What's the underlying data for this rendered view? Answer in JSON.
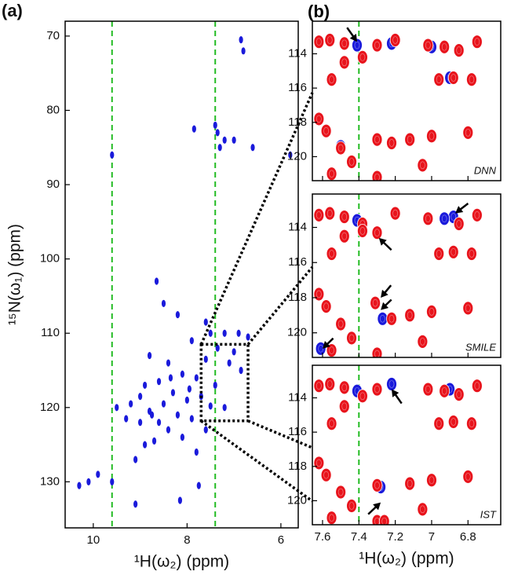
{
  "chart_data": [
    {
      "type": "scatter",
      "panel_label": "(a)",
      "xlabel": "¹H(ω₂) (ppm)",
      "ylabel": "¹⁵N(ω₁) (ppm)",
      "xlim": [
        10.6,
        5.63
      ],
      "ylim": [
        68,
        136.2
      ],
      "xticks": [
        10,
        8,
        6
      ],
      "yticks": [
        70,
        80,
        90,
        100,
        110,
        120,
        130
      ],
      "guides": [
        9.6,
        7.4
      ],
      "guide_color": "#22bb22",
      "zoom_box": {
        "x": [
          7.7,
          6.7
        ],
        "y": [
          111.5,
          121.8
        ]
      },
      "series": [
        {
          "color": "#1a1adb",
          "x": [
            6.85,
            6.8,
            7.4,
            7.85,
            7.35,
            7.2,
            7.0,
            6.6,
            9.6,
            5.8,
            7.3,
            8.65,
            8.5,
            8.2,
            7.6,
            7.5,
            7.2,
            6.9,
            6.7,
            7.9,
            7.35,
            7.0,
            8.8,
            7.6,
            8.4,
            7.1,
            6.85,
            8.1,
            7.8,
            8.6,
            8.9,
            7.4,
            8.3,
            9.0,
            7.7,
            8.0,
            8.5,
            9.2,
            7.5,
            7.2,
            8.8,
            9.5,
            8.2,
            7.9,
            8.6,
            9.0,
            8.4,
            7.6,
            8.1,
            8.7,
            8.9,
            7.8,
            9.1,
            10.3,
            10.1,
            9.9,
            9.6,
            9.1,
            8.15,
            7.75,
            8.35,
            7.95,
            8.75,
            9.3
          ],
          "y": [
            70.5,
            72,
            82,
            82.5,
            83,
            84,
            84,
            85,
            86,
            86,
            85,
            103,
            106,
            107.5,
            108.5,
            110,
            110,
            110,
            110.5,
            111,
            112,
            112.5,
            113,
            113.5,
            114,
            114,
            115,
            115.5,
            116,
            116.5,
            117,
            117,
            118,
            118.5,
            118.5,
            119,
            119.5,
            119.5,
            119.8,
            120,
            120.5,
            120,
            121,
            121.5,
            122,
            122,
            123,
            123,
            124,
            124.5,
            125,
            126,
            127,
            130.5,
            130,
            129,
            130,
            133,
            132.5,
            130.5,
            116,
            117.5,
            121,
            121.5
          ]
        }
      ]
    },
    {
      "type": "scatter",
      "title": "DNN",
      "xlim": [
        7.656,
        6.62
      ],
      "ylim": [
        112.1,
        121.4
      ],
      "xticks": [
        7.6,
        7.4,
        7.2,
        7.0,
        6.8
      ],
      "show_xtick_labels": false,
      "yticks": [
        114,
        116,
        118,
        120
      ],
      "guides": [
        7.4
      ],
      "guide_color": "#22bb22",
      "arrows": [
        {
          "from": [
            7.45,
            112.7
          ],
          "to": [
            7.41,
            113.3
          ]
        }
      ],
      "series": [
        {
          "color": "#1a1adb",
          "x": [
            7.41,
            7.22,
            6.9,
            7.0,
            7.5
          ],
          "y": [
            113.5,
            113.4,
            115.4,
            113.6,
            119.4
          ]
        },
        {
          "color": "#e8141c",
          "x": [
            7.62,
            7.56,
            7.48,
            7.3,
            7.2,
            7.02,
            6.93,
            6.85,
            6.75,
            7.55,
            7.62,
            7.58,
            7.5,
            7.44,
            7.55,
            7.22,
            7.3,
            7.12,
            7.0,
            6.96,
            6.88,
            6.78,
            7.05,
            6.8,
            7.3,
            7.38,
            7.48
          ],
          "y": [
            113.3,
            113.2,
            113.4,
            113.5,
            113.2,
            113.5,
            113.6,
            113.8,
            113.3,
            115.5,
            117.8,
            118.5,
            119.5,
            120.3,
            121,
            119.2,
            119,
            119,
            118.8,
            115.5,
            115.4,
            115.5,
            120.5,
            118.6,
            121.2,
            114.2,
            114.5
          ]
        }
      ]
    },
    {
      "type": "scatter",
      "title": "SMILE",
      "xlim": [
        7.656,
        6.62
      ],
      "ylim": [
        112.1,
        121.4
      ],
      "xticks": [
        7.6,
        7.4,
        7.2,
        7.0,
        6.8
      ],
      "show_xtick_labels": false,
      "yticks": [
        114,
        116,
        118,
        120
      ],
      "guides": [
        7.4
      ],
      "guide_color": "#22bb22",
      "arrows": [
        {
          "from": [
            6.82,
            112.8
          ],
          "to": [
            6.87,
            113.2
          ]
        },
        {
          "from": [
            7.24,
            115.1
          ],
          "to": [
            7.29,
            114.6
          ]
        },
        {
          "from": [
            7.24,
            117.5
          ],
          "to": [
            7.28,
            118.0
          ]
        },
        {
          "from": [
            7.24,
            118.3
          ],
          "to": [
            7.28,
            118.7
          ]
        },
        {
          "from": [
            7.56,
            120.5
          ],
          "to": [
            7.6,
            120.9
          ]
        }
      ],
      "series": [
        {
          "color": "#1a1adb",
          "x": [
            6.88,
            6.93,
            7.27,
            7.61,
            7.41
          ],
          "y": [
            113.4,
            113.5,
            119.2,
            120.9,
            113.6
          ]
        },
        {
          "color": "#e8141c",
          "x": [
            7.62,
            7.56,
            7.48,
            7.38,
            7.3,
            7.2,
            7.02,
            6.85,
            6.75,
            7.55,
            7.62,
            7.58,
            7.5,
            7.44,
            7.55,
            7.22,
            7.12,
            7.0,
            6.96,
            6.88,
            6.78,
            7.05,
            6.8,
            7.3,
            7.38,
            7.48,
            7.31
          ],
          "y": [
            113.3,
            113.2,
            113.4,
            113.8,
            114.3,
            113.2,
            113.5,
            113.8,
            113.3,
            115.5,
            117.8,
            118.5,
            119.5,
            120.3,
            121,
            119.2,
            119,
            118.8,
            115.5,
            115.4,
            115.5,
            120.5,
            118.6,
            121.2,
            114.2,
            114.5,
            118.3
          ]
        }
      ]
    },
    {
      "type": "scatter",
      "title": "IST",
      "xlabel": "¹H(ω₂) (ppm)",
      "xlim": [
        7.656,
        6.62
      ],
      "ylim": [
        112.1,
        121.4
      ],
      "xticks": [
        7.6,
        7.4,
        7.2,
        7.0,
        6.8
      ],
      "show_xtick_labels": true,
      "yticks": [
        114,
        116,
        118,
        120
      ],
      "guides": [
        7.4
      ],
      "guide_color": "#22bb22",
      "arrows": [
        {
          "from": [
            7.18,
            114.1
          ],
          "to": [
            7.22,
            113.5
          ]
        },
        {
          "from": [
            7.33,
            120.6
          ],
          "to": [
            7.28,
            120.1
          ]
        }
      ],
      "series": [
        {
          "color": "#1a1adb",
          "x": [
            7.22,
            7.28,
            6.9,
            7.41
          ],
          "y": [
            113.2,
            119.2,
            113.5,
            113.6
          ]
        },
        {
          "color": "#e8141c",
          "x": [
            7.62,
            7.56,
            7.48,
            7.38,
            7.3,
            7.02,
            6.93,
            6.85,
            6.75,
            7.55,
            7.62,
            7.58,
            7.5,
            7.44,
            7.55,
            7.3,
            7.12,
            7.0,
            6.96,
            6.88,
            6.78,
            7.05,
            6.8,
            7.3,
            7.48,
            7.26
          ],
          "y": [
            113.3,
            113.2,
            113.4,
            113.9,
            113.5,
            113.5,
            113.6,
            113.8,
            113.3,
            115.5,
            117.8,
            118.5,
            119.5,
            120.3,
            121,
            119.1,
            119,
            118.8,
            115.5,
            115.4,
            115.5,
            120.5,
            118.6,
            121.2,
            114.5,
            121.2
          ]
        }
      ]
    }
  ]
}
